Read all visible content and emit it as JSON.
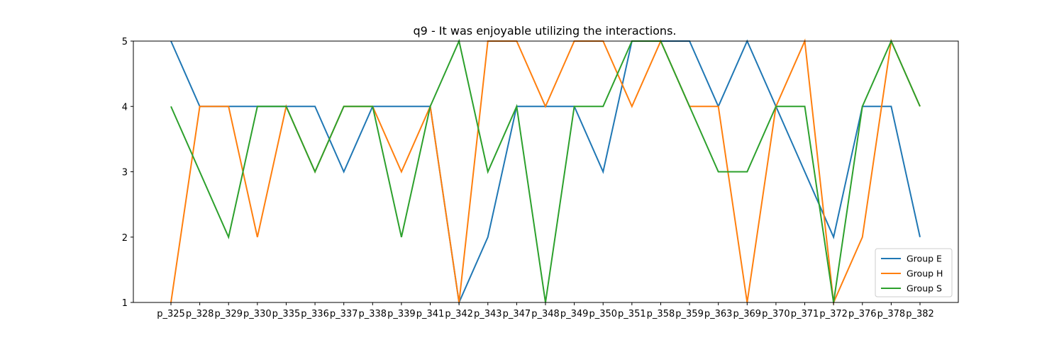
{
  "chart_data": {
    "type": "line",
    "title": "q9 - It was enjoyable utilizing the interactions.",
    "xlabel": "",
    "ylabel": "",
    "categories": [
      "p_325",
      "p_328",
      "p_329",
      "p_330",
      "p_335",
      "p_336",
      "p_337",
      "p_338",
      "p_339",
      "p_341",
      "p_342",
      "p_343",
      "p_347",
      "p_348",
      "p_349",
      "p_350",
      "p_351",
      "p_358",
      "p_359",
      "p_363",
      "p_369",
      "p_370",
      "p_371",
      "p_372",
      "p_376",
      "p_378",
      "p_382"
    ],
    "ylim": [
      1,
      5
    ],
    "yticks": [
      1,
      2,
      3,
      4,
      5
    ],
    "grid": false,
    "legend_position": "lower right",
    "series": [
      {
        "name": "Group E",
        "color": "#1f77b4",
        "values": [
          5,
          4,
          4,
          4,
          4,
          4,
          3,
          4,
          4,
          4,
          1,
          2,
          4,
          4,
          4,
          3,
          5,
          5,
          5,
          4,
          5,
          4,
          3,
          2,
          4,
          4,
          2
        ]
      },
      {
        "name": "Group H",
        "color": "#ff7f0e",
        "values": [
          1,
          4,
          4,
          2,
          4,
          3,
          4,
          4,
          3,
          4,
          1,
          5,
          5,
          4,
          5,
          5,
          4,
          5,
          4,
          4,
          1,
          4,
          5,
          1,
          2,
          5,
          4
        ]
      },
      {
        "name": "Group S",
        "color": "#2ca02c",
        "values": [
          4,
          3,
          2,
          4,
          4,
          3,
          4,
          4,
          2,
          4,
          5,
          3,
          4,
          1,
          4,
          4,
          5,
          5,
          4,
          3,
          3,
          4,
          4,
          1,
          4,
          5,
          4
        ]
      }
    ]
  }
}
